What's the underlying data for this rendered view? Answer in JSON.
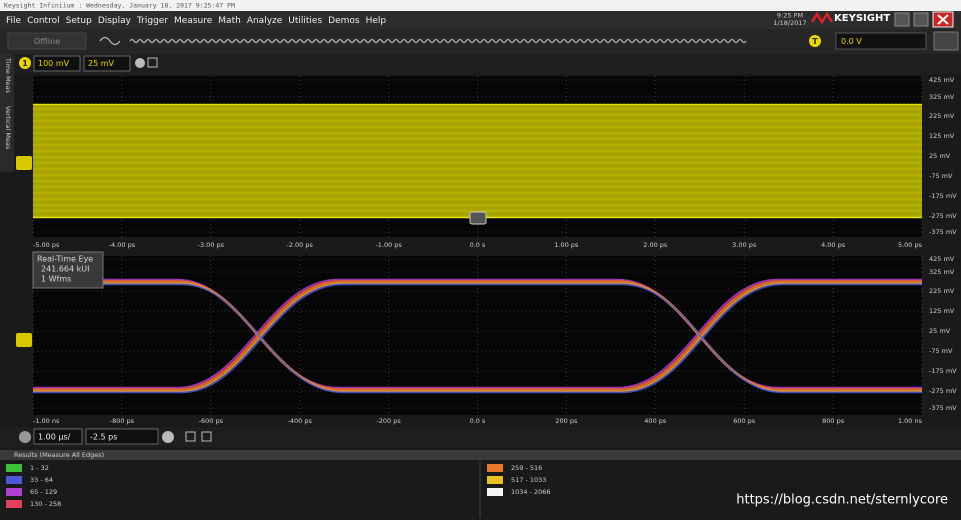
{
  "window": {
    "title": "Keysight Infiniium : Wednesday, January 18, 2017 9:25:47 PM",
    "menu": [
      "File",
      "Control",
      "Setup",
      "Display",
      "Trigger",
      "Measure",
      "Math",
      "Analyze",
      "Utilities",
      "Demos",
      "Help"
    ],
    "time": "9:25 PM",
    "date": "1/18/2017",
    "brand": "KEYSIGHT"
  },
  "toolbar": {
    "status": "Offline",
    "trigger_icon": "T",
    "trigger_level": "0.0 V"
  },
  "channel": {
    "number": "1",
    "scale": "100 mV",
    "offset": "25 mV"
  },
  "side_tabs": [
    "Time Meas",
    "Vertical Meas"
  ],
  "upper_plot": {
    "y_labels": [
      "425 mV",
      "325 mV",
      "225 mV",
      "125 mV",
      "25 mV",
      "-75 mV",
      "-175 mV",
      "-275 mV",
      "-375 mV"
    ],
    "x_labels": [
      "-5.00 ps",
      "-4.00 ps",
      "-3.00 ps",
      "-2.00 ps",
      "-1.00 ps",
      "0.0 s",
      "1.00 ps",
      "2.00 ps",
      "3.00 ps",
      "4.00 ps",
      "5.00 ps"
    ]
  },
  "lower_plot": {
    "overlay": [
      "Real-Time Eye",
      "241.664 kUI",
      "1 Wfms"
    ],
    "y_labels": [
      "425 mV",
      "325 mV",
      "225 mV",
      "125 mV",
      "25 mV",
      "-75 mV",
      "-175 mV",
      "-275 mV",
      "-375 mV"
    ],
    "x_labels": [
      "-1.00 ns",
      "-800 ps",
      "-600 ps",
      "-400 ps",
      "-200 ps",
      "0.0 s",
      "200 ps",
      "400 ps",
      "600 ps",
      "800 ps",
      "1.00 ns"
    ]
  },
  "horizontal": {
    "scale": "1.00 µs/",
    "position": "-2.5 ps"
  },
  "results": {
    "title": "Results  (Measure All Edges)",
    "legend": [
      {
        "label": "1 - 32",
        "color": "#3cc03c"
      },
      {
        "label": "33 - 64",
        "color": "#4a5ad8"
      },
      {
        "label": "65 - 129",
        "color": "#b040d0"
      },
      {
        "label": "130 - 258",
        "color": "#e0405a"
      },
      {
        "label": "259 - 516",
        "color": "#e8782a"
      },
      {
        "label": "517 - 1033",
        "color": "#e8c020"
      },
      {
        "label": "1034 - 2066",
        "color": "#f4f4f4"
      }
    ]
  },
  "watermark": "https://blog.csdn.net/sternlycore"
}
